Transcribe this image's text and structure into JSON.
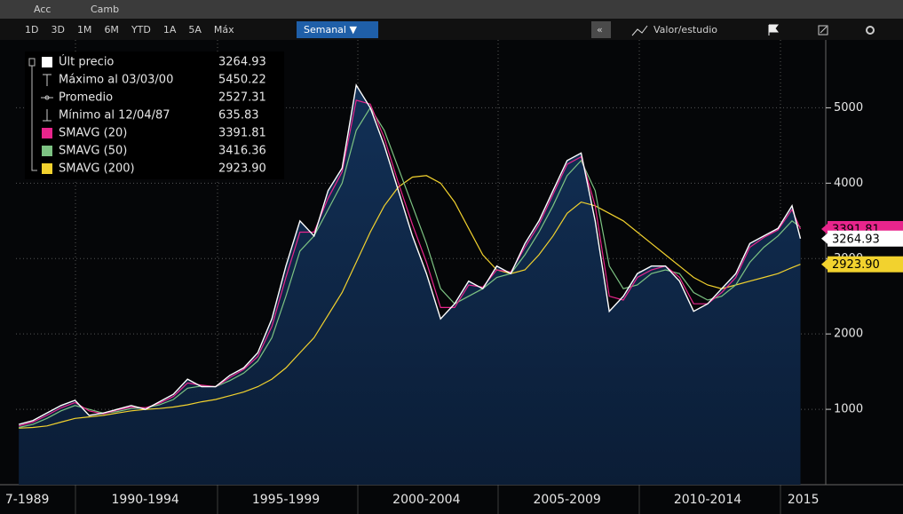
{
  "toolbar": {
    "top": [
      "Acc",
      "Camb"
    ],
    "periods": [
      "1D",
      "3D",
      "1M",
      "6M",
      "YTD",
      "1A",
      "5A",
      "Máx"
    ],
    "interval": "Semanal ▼",
    "collapse": "«",
    "study": "Valor/estudio"
  },
  "chart_data": {
    "type": "line",
    "x": [
      1988,
      1988.5,
      1989,
      1989.5,
      1990,
      1990.5,
      1991,
      1991.5,
      1992,
      1992.5,
      1993,
      1993.5,
      1994,
      1994.5,
      1995,
      1995.5,
      1996,
      1996.5,
      1997,
      1997.5,
      1998,
      1998.5,
      1999,
      1999.5,
      2000,
      2000.5,
      2001,
      2001.5,
      2002,
      2002.5,
      2003,
      2003.5,
      2004,
      2004.5,
      2005,
      2005.5,
      2006,
      2006.5,
      2007,
      2007.5,
      2008,
      2008.5,
      2009,
      2009.5,
      2010,
      2010.5,
      2011,
      2011.5,
      2012,
      2012.5,
      2013,
      2013.5,
      2014,
      2014.5,
      2015,
      2015.5,
      2015.8
    ],
    "series": [
      {
        "name": "Últ precio",
        "color": "#ffffff",
        "legend_value": "3264.93",
        "values": [
          800,
          850,
          950,
          1050,
          1120,
          920,
          950,
          1000,
          1050,
          1000,
          1100,
          1200,
          1400,
          1300,
          1300,
          1450,
          1550,
          1750,
          2200,
          2900,
          3500,
          3300,
          3900,
          4200,
          5300,
          5000,
          4500,
          3900,
          3300,
          2800,
          2200,
          2400,
          2700,
          2600,
          2900,
          2800,
          3200,
          3500,
          3900,
          4300,
          4400,
          3500,
          2300,
          2500,
          2800,
          2900,
          2900,
          2700,
          2300,
          2400,
          2600,
          2800,
          3200,
          3300,
          3400,
          3700,
          3264.93
        ]
      },
      {
        "name": "SMAVG (20)",
        "color": "#e8258c",
        "legend_value": "3391.81",
        "values": [
          780,
          830,
          920,
          1020,
          1090,
          980,
          940,
          990,
          1030,
          1020,
          1080,
          1170,
          1350,
          1320,
          1300,
          1420,
          1530,
          1700,
          2100,
          2750,
          3350,
          3350,
          3800,
          4150,
          5100,
          5050,
          4600,
          4000,
          3450,
          2950,
          2350,
          2350,
          2650,
          2620,
          2850,
          2820,
          3150,
          3450,
          3850,
          4250,
          4350,
          3700,
          2500,
          2450,
          2750,
          2850,
          2900,
          2750,
          2400,
          2400,
          2550,
          2750,
          3150,
          3280,
          3380,
          3650,
          3391.81
        ]
      },
      {
        "name": "SMAVG (50)",
        "color": "#7dc383",
        "legend_value": "3416.36",
        "values": [
          760,
          800,
          880,
          980,
          1050,
          1000,
          950,
          970,
          1010,
          1020,
          1060,
          1130,
          1280,
          1310,
          1300,
          1380,
          1480,
          1640,
          1950,
          2500,
          3100,
          3300,
          3650,
          4000,
          4700,
          5000,
          4700,
          4200,
          3700,
          3200,
          2600,
          2400,
          2500,
          2600,
          2750,
          2800,
          3050,
          3350,
          3700,
          4100,
          4300,
          3900,
          2900,
          2600,
          2650,
          2800,
          2850,
          2800,
          2550,
          2450,
          2500,
          2650,
          2950,
          3150,
          3300,
          3500,
          3416.36
        ]
      },
      {
        "name": "SMAVG (200)",
        "color": "#f2d22e",
        "legend_value": "2923.90",
        "values": [
          750,
          760,
          780,
          830,
          880,
          900,
          920,
          950,
          980,
          1000,
          1010,
          1030,
          1060,
          1100,
          1130,
          1180,
          1230,
          1300,
          1400,
          1550,
          1750,
          1950,
          2250,
          2550,
          2950,
          3350,
          3700,
          3950,
          4080,
          4100,
          4000,
          3750,
          3400,
          3050,
          2850,
          2800,
          2850,
          3050,
          3300,
          3600,
          3750,
          3700,
          3600,
          3500,
          3350,
          3200,
          3050,
          2900,
          2750,
          2650,
          2600,
          2650,
          2700,
          2750,
          2800,
          2880,
          2923.9
        ]
      }
    ],
    "stats": [
      {
        "name": "Máximo al 03/03/00",
        "value": "5450.22"
      },
      {
        "name": "Promedio",
        "value": "2527.31"
      },
      {
        "name": "Mínimo al 12/04/87",
        "value": "635.83"
      }
    ],
    "xlim": [
      1987.9,
      2016.7
    ],
    "xticks": [
      {
        "value": 1988.3,
        "label": "7-1989"
      },
      {
        "value": 1992.5,
        "label": "1990-1994"
      },
      {
        "value": 1997.5,
        "label": "1995-1999"
      },
      {
        "value": 2002.5,
        "label": "2000-2004"
      },
      {
        "value": 2007.5,
        "label": "2005-2009"
      },
      {
        "value": 2012.5,
        "label": "2010-2014"
      },
      {
        "value": 2015.9,
        "label": "2015"
      }
    ],
    "ylim": [
      0,
      5900
    ],
    "yticks": [
      1000,
      2000,
      3000,
      4000,
      5000
    ],
    "grid": true
  }
}
